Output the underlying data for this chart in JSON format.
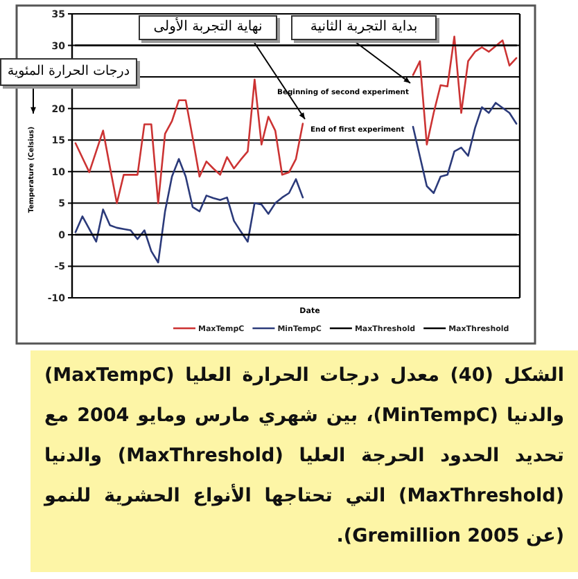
{
  "chart_data": {
    "type": "line",
    "xlabel": "Date",
    "ylabel": "Temperature (Celsius)",
    "categories": [
      null,
      null,
      null,
      null,
      null,
      null,
      null,
      null,
      null,
      null,
      null,
      null,
      null,
      null,
      null,
      null,
      null,
      null,
      null,
      null,
      null,
      null,
      null,
      null,
      null,
      null,
      null,
      null,
      null,
      null,
      null,
      null,
      null,
      null,
      null,
      null,
      null,
      null,
      null,
      null,
      null,
      null,
      null,
      null,
      null,
      null,
      null,
      null,
      null,
      null,
      null,
      null,
      null,
      null,
      null,
      null,
      null,
      null,
      null,
      null,
      null,
      null,
      null,
      null,
      null
    ],
    "ylim": [
      -10,
      35
    ],
    "yticks": [
      -10,
      -5,
      0,
      5,
      10,
      15,
      20,
      {
        "value": 25,
        "label": null
      },
      30,
      35
    ],
    "grid": "y",
    "legend": "bottom",
    "marker": "none",
    "line_style": "solid",
    "series": [
      {
        "name": "MaxTempC",
        "color": "#cc3333",
        "values": [
          14.5,
          12.2,
          9.9,
          13.2,
          16.5,
          10.7,
          5,
          9.5,
          9.5,
          9.5,
          17.5,
          17.5,
          5,
          16,
          18,
          21.3,
          21.3,
          15.4,
          9.2,
          11.6,
          10.5,
          9.5,
          12.3,
          10.5,
          11.9,
          13.2,
          24.6,
          14.3,
          18.7,
          16.5,
          9.5,
          9.9,
          12,
          17.6,
          null,
          null,
          null,
          null,
          null,
          null,
          null,
          null,
          null,
          null,
          null,
          null,
          null,
          null,
          null,
          25.3,
          27.5,
          14.3,
          19.3,
          23.7,
          23.5,
          31.4,
          19.3,
          27.5,
          29,
          29.7,
          29,
          29.9,
          30.8,
          26.8,
          28
        ]
      },
      {
        "name": "MinTempC",
        "color": "#2b3a7a",
        "values": [
          0.4,
          2.9,
          0.9,
          -1.1,
          4,
          1.5,
          1.1,
          0.9,
          0.7,
          -0.7,
          0.7,
          -2.6,
          -4.4,
          3.7,
          9.2,
          12,
          9.2,
          4.4,
          3.7,
          6.2,
          5.8,
          5.5,
          5.9,
          2.2,
          0.5,
          -1.1,
          5,
          4.8,
          3.3,
          5,
          5.9,
          6.6,
          8.8,
          5.9,
          null,
          null,
          null,
          null,
          null,
          null,
          null,
          null,
          null,
          null,
          null,
          null,
          null,
          null,
          null,
          17.1,
          12.4,
          7.7,
          6.6,
          9.2,
          9.5,
          13.2,
          13.8,
          12.5,
          16.9,
          20.2,
          19.3,
          20.9,
          20.1,
          19.3,
          17.6
        ]
      },
      {
        "name": "MaxThreshold",
        "color": "#000000",
        "values": [
          30,
          30,
          30,
          30,
          30,
          30,
          30,
          30,
          30,
          30,
          30,
          30,
          30,
          30,
          30,
          30,
          30,
          30,
          30,
          30,
          30,
          30,
          30,
          30,
          30,
          30,
          30,
          30,
          30,
          30,
          30,
          30,
          30,
          30,
          30,
          30,
          30,
          30,
          30,
          30,
          30,
          30,
          30,
          30,
          30,
          30,
          30,
          30,
          30,
          30,
          30,
          30,
          30,
          30,
          30,
          30,
          30,
          30,
          30,
          30,
          30,
          30,
          30,
          30,
          30
        ]
      },
      {
        "name": "MaxThreshold",
        "color": "#000000",
        "values": [
          0,
          0,
          0,
          0,
          0,
          0,
          0,
          0,
          0,
          0,
          0,
          0,
          0,
          0,
          0,
          0,
          0,
          0,
          0,
          0,
          0,
          0,
          0,
          0,
          0,
          0,
          0,
          0,
          0,
          0,
          0,
          0,
          0,
          0,
          0,
          0,
          0,
          0,
          0,
          0,
          0,
          0,
          0,
          0,
          0,
          0,
          0,
          0,
          0,
          0,
          0,
          0,
          0,
          0,
          0,
          0,
          0,
          0,
          0,
          0,
          0,
          0,
          0,
          0,
          0
        ]
      }
    ],
    "annotations": [
      "درجات الحرارة المئوية",
      "نهاية التجربة الأولى",
      "بداية التجربة الثانية",
      "End of first experiment",
      "Beginning of second experiment",
      "الشكل (40) معدل درجات الحرارة العليا (MaxTempC) والدنيا (MinTempC)، بين شهري مارس ومايو 2004 مع تحديد الحدود الحرجة العليا (MaxThreshold) والدنيا (MaxThreshold) التي تحتاجها الأنواع الحشرية للنمو (عن Gremillion 2005)."
    ]
  }
}
